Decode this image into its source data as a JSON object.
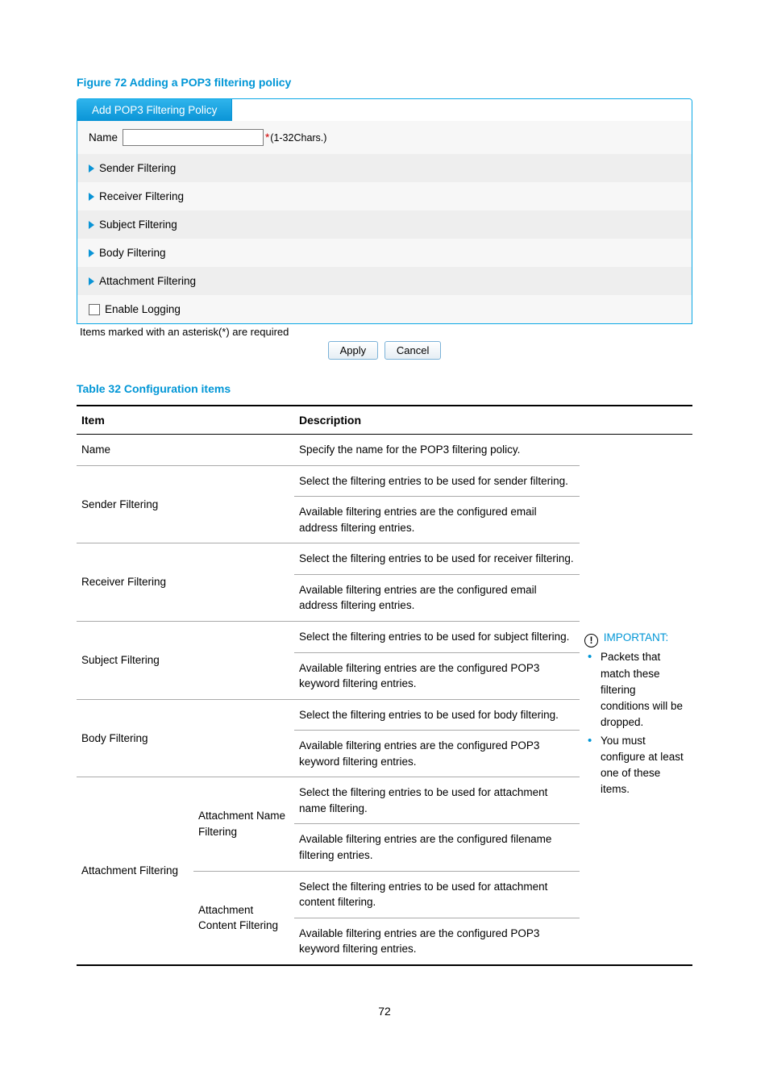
{
  "figure": {
    "caption": "Figure 72 Adding a POP3 filtering policy",
    "tab_label": "Add POP3 Filtering Policy",
    "name_label": "Name",
    "name_hint": "(1-32Chars.)",
    "rows": {
      "sender": "Sender Filtering",
      "receiver": "Receiver Filtering",
      "subject": "Subject Filtering",
      "body": "Body Filtering",
      "attachment": "Attachment Filtering",
      "logging": "Enable Logging"
    },
    "required_note": "Items marked with an asterisk(*) are required",
    "apply": "Apply",
    "cancel": "Cancel"
  },
  "table": {
    "caption": "Table 32 Configuration items",
    "head_item": "Item",
    "head_desc": "Description",
    "name_item": "Name",
    "name_desc": "Specify the name for the POP3 filtering policy.",
    "sender_item": "Sender Filtering",
    "sender_d1": "Select the filtering entries to be used for sender filtering.",
    "sender_d2": "Available filtering entries are the configured email address filtering entries.",
    "receiver_item": "Receiver Filtering",
    "receiver_d1": "Select the filtering entries to be used for receiver filtering.",
    "receiver_d2": "Available filtering entries are the configured email address filtering entries.",
    "subject_item": "Subject Filtering",
    "subject_d1": "Select the filtering entries to be used for subject filtering.",
    "subject_d2": "Available filtering entries are the configured POP3 keyword filtering entries.",
    "body_item": "Body Filtering",
    "body_d1": "Select the filtering entries to be used for body filtering.",
    "body_d2": "Available filtering entries are the configured POP3 keyword filtering entries.",
    "att_item": "Attachment Filtering",
    "att_name_item": "Attachment Name Filtering",
    "att_name_d1": "Select the filtering entries to be used for attachment name filtering.",
    "att_name_d2": "Available filtering entries are the configured filename filtering entries.",
    "att_content_item": "Attachment Content Filtering",
    "att_content_d1": "Select the filtering entries to be used for attachment content filtering.",
    "att_content_d2": "Available filtering entries are the configured POP3 keyword filtering entries.",
    "important_label": "IMPORTANT:",
    "important_1": "Packets that match these filtering conditions will be dropped.",
    "important_2": "You must configure at least one of these items."
  },
  "page_number": "72"
}
